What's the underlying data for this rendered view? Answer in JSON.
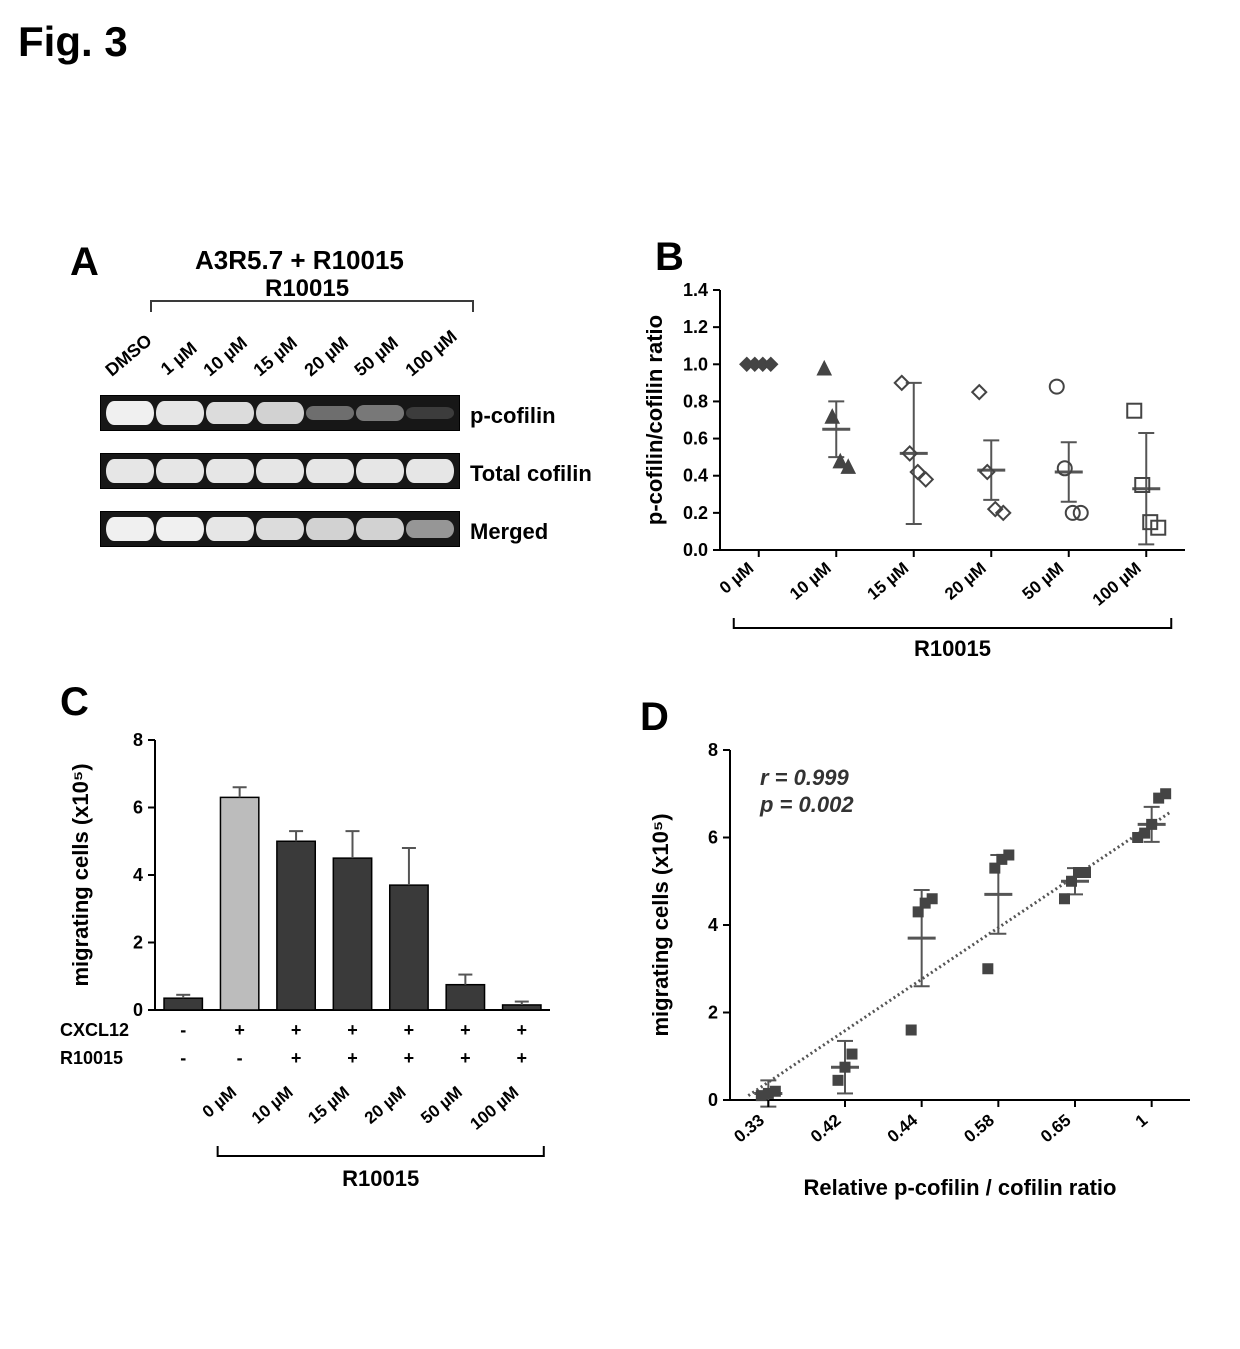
{
  "figure_label": "Fig. 3",
  "panelA": {
    "letter": "A",
    "title": "A3R5.7 + R10015",
    "sub_bracket_label": "R10015",
    "lane_labels": [
      "DMSO",
      "1 µM",
      "10 µM",
      "15 µM",
      "20 µM",
      "50 µM",
      "100 µM"
    ],
    "rows": [
      {
        "label": "p-cofilin",
        "band_intensities": [
          1.0,
          0.95,
          0.9,
          0.85,
          0.35,
          0.4,
          0.1
        ],
        "background": "#171717",
        "band_color_base": "#f0f0f0"
      },
      {
        "label": "Total cofilin",
        "band_intensities": [
          0.95,
          0.95,
          0.95,
          0.95,
          0.95,
          0.95,
          0.95
        ],
        "background": "#171717",
        "band_color_base": "#c5c5c5"
      },
      {
        "label": "Merged",
        "band_intensities": [
          1.0,
          1.0,
          0.95,
          0.9,
          0.85,
          0.85,
          0.55
        ],
        "background": "#171717",
        "band_color_base": "#dcdcdc"
      }
    ]
  },
  "panelB": {
    "letter": "B",
    "type": "scatter-strip",
    "ylabel": "p-cofilin/cofilin ratio",
    "ylim": [
      0,
      1.4
    ],
    "ytick_step": 0.2,
    "x_categories": [
      "0 µM",
      "10 µM",
      "15 µM",
      "20 µM",
      "50 µM",
      "100 µM"
    ],
    "x_bracket_label": "R10015",
    "point_color": "#606060",
    "mean_sd": [
      {
        "mean": 1.0,
        "sd": 0.0
      },
      {
        "mean": 0.65,
        "sd": 0.15
      },
      {
        "mean": 0.52,
        "sd": 0.38
      },
      {
        "mean": 0.43,
        "sd": 0.16
      },
      {
        "mean": 0.42,
        "sd": 0.16
      },
      {
        "mean": 0.33,
        "sd": 0.3
      }
    ],
    "points": [
      [
        1.0,
        1.0,
        1.0,
        1.0
      ],
      [
        0.98,
        0.72,
        0.48,
        0.45
      ],
      [
        0.9,
        0.52,
        0.42,
        0.38
      ],
      [
        0.85,
        0.42,
        0.22,
        0.2
      ],
      [
        0.88,
        0.44,
        0.2,
        0.2
      ],
      [
        0.75,
        0.35,
        0.15,
        0.12
      ]
    ],
    "markers": [
      "diamond-fill",
      "triangle",
      "diamond",
      "diamond",
      "circle",
      "square"
    ]
  },
  "panelC": {
    "letter": "C",
    "type": "bar",
    "ylabel": "migrating cells (x10⁵)",
    "ylim": [
      0,
      8
    ],
    "ytick_step": 2,
    "categories": [
      "0µM-noCX",
      "0µM+CX",
      "10 µM",
      "15 µM",
      "20 µM",
      "50 µM",
      "100 µM"
    ],
    "x_labels": [
      "0 µM",
      "10 µM",
      "15 µM",
      "20 µM",
      "50 µM",
      "100 µM"
    ],
    "bars": [
      {
        "value": 0.35,
        "err": 0.1,
        "fill": "#3a3a3a"
      },
      {
        "value": 6.3,
        "err": 0.3,
        "fill": "#bcbcbc"
      },
      {
        "value": 5.0,
        "err": 0.3,
        "fill": "#3a3a3a"
      },
      {
        "value": 4.5,
        "err": 0.8,
        "fill": "#3a3a3a"
      },
      {
        "value": 3.7,
        "err": 1.1,
        "fill": "#3a3a3a"
      },
      {
        "value": 0.75,
        "err": 0.3,
        "fill": "#3a3a3a"
      },
      {
        "value": 0.15,
        "err": 0.1,
        "fill": "#3a3a3a"
      }
    ],
    "row_factors": {
      "CXCL12": [
        "-",
        "+",
        "+",
        "+",
        "+",
        "+",
        "+"
      ],
      "R10015": [
        "-",
        "-",
        "+",
        "+",
        "+",
        "+",
        "+"
      ]
    },
    "bracket_label": "R10015"
  },
  "panelD": {
    "letter": "D",
    "type": "scatter-regression",
    "ylabel": "migrating cells (x10⁵)",
    "xlabel": "Relative p-cofilin / cofilin ratio",
    "ylim": [
      0,
      8
    ],
    "ytick_step": 2,
    "xticks": [
      0.33,
      0.42,
      0.44,
      0.58,
      0.65,
      1.0
    ],
    "regression": {
      "r": 0.999,
      "p": 0.002,
      "line_p1": [
        0.3,
        0.0
      ],
      "line_p2": [
        1.05,
        6.8
      ]
    },
    "stats_text": [
      "r = 0.999",
      "p = 0.002"
    ],
    "point_color": "#3a3a3a",
    "groups": [
      {
        "x": 0.33,
        "mean": 0.15,
        "sd": 0.3,
        "pts": [
          0.1,
          0.15,
          0.2
        ]
      },
      {
        "x": 0.42,
        "mean": 0.75,
        "sd": 0.6,
        "pts": [
          0.45,
          0.75,
          1.05
        ]
      },
      {
        "x": 0.44,
        "mean": 3.7,
        "sd": 1.1,
        "pts": [
          1.6,
          4.3,
          4.5,
          4.6
        ]
      },
      {
        "x": 0.58,
        "mean": 4.7,
        "sd": 0.9,
        "pts": [
          3.0,
          5.3,
          5.5,
          5.6
        ]
      },
      {
        "x": 0.65,
        "mean": 5.0,
        "sd": 0.3,
        "pts": [
          4.6,
          5.0,
          5.2,
          5.2
        ]
      },
      {
        "x": 1.0,
        "mean": 6.3,
        "sd": 0.4,
        "pts": [
          6.0,
          6.1,
          6.3,
          6.9,
          7.0
        ]
      }
    ]
  },
  "colors": {
    "black": "#000000",
    "dark_grey": "#3a3a3a",
    "light_grey": "#bcbcbc",
    "gel_bg": "#171717"
  },
  "fontsizes": {
    "figure_label": 42,
    "panel_letter": 40,
    "axis_title": 22,
    "tick_label": 18
  }
}
